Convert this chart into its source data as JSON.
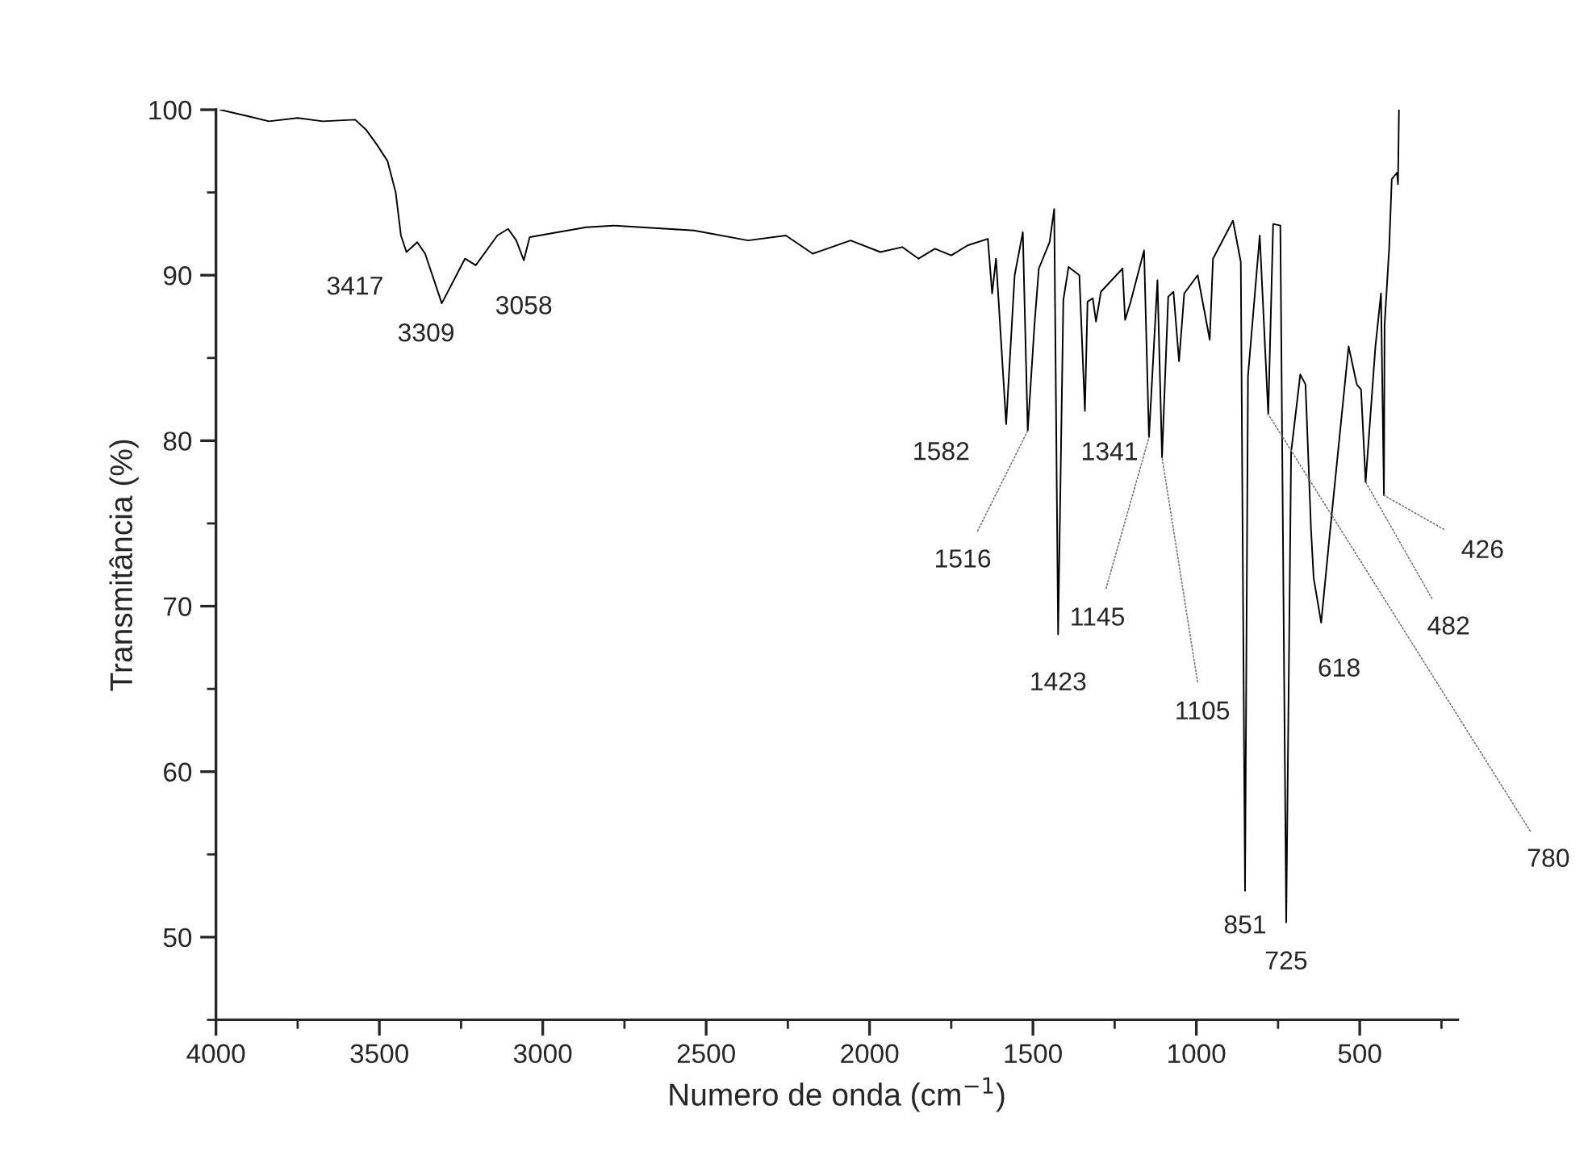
{
  "chart_data": {
    "type": "line",
    "xlabel": "Numero de onda (cm$^{−1}$)",
    "ylabel": "Transmitância (%)",
    "xlim": [
      4000,
      200
    ],
    "ylim": [
      45,
      100
    ],
    "xticks": [
      4000,
      {
        "value": 3750,
        "label": null
      },
      3500,
      {
        "value": 3250,
        "label": null
      },
      3000,
      {
        "value": 2750,
        "label": null
      },
      2500,
      {
        "value": 2250,
        "label": null
      },
      2000,
      {
        "value": 1750,
        "label": null
      },
      1500,
      {
        "value": 1250,
        "label": null
      },
      1000,
      {
        "value": 750,
        "label": null
      },
      500,
      {
        "value": 250,
        "label": null
      }
    ],
    "yticks": [
      {
        "value": 45,
        "label": null
      },
      50,
      {
        "value": 55,
        "label": null
      },
      60,
      {
        "value": 65,
        "label": null
      },
      70,
      {
        "value": 75,
        "label": null
      },
      80,
      {
        "value": 85,
        "label": null
      },
      90,
      {
        "value": 95,
        "label": null
      },
      100
    ],
    "grid": false,
    "legend": false,
    "marker": "none",
    "line_style": "solid",
    "series": [
      {
        "color": "#000000",
        "x": [
          3987,
          3900,
          3838,
          3750,
          3673,
          3574,
          3541,
          3508,
          3475,
          3450,
          3434,
          3417,
          3384,
          3360,
          3309,
          3238,
          3205,
          3139,
          3106,
          3081,
          3058,
          3040,
          2867,
          2784,
          2537,
          2372,
          2256,
          2174,
          2058,
          1967,
          1900,
          1850,
          1800,
          1750,
          1700,
          1638,
          1625,
          1613,
          1582,
          1556,
          1531,
          1516,
          1495,
          1482,
          1449,
          1435,
          1423,
          1407,
          1391,
          1358,
          1341,
          1333,
          1317,
          1307,
          1292,
          1226,
          1218,
          1201,
          1160,
          1145,
          1119,
          1105,
          1086,
          1070,
          1053,
          1037,
          996,
          959,
          949,
          888,
          864,
          851,
          842,
          806,
          780,
          765,
          743,
          725,
          710,
          682,
          666,
          649,
          641,
          618,
          592,
          534,
          509,
          496,
          482,
          452,
          435,
          426,
          424,
          410,
          402,
          386,
          383,
          380
        ],
        "values": [
          100.0,
          99.6,
          99.3,
          99.5,
          99.3,
          99.4,
          98.8,
          97.9,
          96.9,
          95.0,
          92.4,
          91.4,
          92.0,
          91.3,
          88.3,
          91.0,
          90.6,
          92.4,
          92.8,
          92.1,
          90.9,
          92.3,
          92.9,
          93.0,
          92.7,
          92.1,
          92.4,
          91.3,
          92.1,
          91.4,
          91.7,
          91.0,
          91.6,
          91.2,
          91.8,
          92.2,
          88.9,
          91.0,
          81.0,
          90.0,
          92.6,
          80.6,
          87.1,
          90.4,
          92.0,
          94.0,
          68.3,
          88.5,
          90.5,
          90.0,
          81.8,
          88.4,
          88.6,
          87.2,
          89.0,
          90.4,
          87.3,
          88.4,
          91.5,
          80.2,
          89.7,
          79.0,
          88.7,
          89.0,
          84.8,
          88.9,
          90.0,
          86.1,
          91.0,
          93.3,
          90.8,
          52.8,
          83.9,
          92.4,
          81.6,
          93.1,
          93.0,
          50.9,
          79.3,
          84.0,
          83.4,
          74.6,
          71.7,
          69.0,
          74.3,
          85.7,
          83.4,
          83.1,
          77.5,
          85.7,
          88.9,
          76.7,
          87.0,
          91.6,
          95.8,
          96.2,
          95.5,
          100.0
        ]
      }
    ],
    "annotations": [
      {
        "text": "3417",
        "x": 3417,
        "y": 91.4
      },
      {
        "text": "3309",
        "x": 3309,
        "y": 88.3
      },
      {
        "text": "3058",
        "x": 3058,
        "y": 90.9
      },
      {
        "text": "1582",
        "x": 1582,
        "y": 81.0
      },
      {
        "text": "1516",
        "x": 1516,
        "y": 80.6
      },
      {
        "text": "1423",
        "x": 1423,
        "y": 68.3
      },
      {
        "text": "1341",
        "x": 1341,
        "y": 81.8
      },
      {
        "text": "1145",
        "x": 1145,
        "y": 80.2
      },
      {
        "text": "1105",
        "x": 1105,
        "y": 79.0
      },
      {
        "text": "851",
        "x": 851,
        "y": 52.8
      },
      {
        "text": "725",
        "x": 725,
        "y": 50.9
      },
      {
        "text": "618",
        "x": 618,
        "y": 69.0
      },
      {
        "text": "780",
        "x": 780,
        "y": 81.6
      },
      {
        "text": "482",
        "x": 482,
        "y": 77.5
      },
      {
        "text": "426",
        "x": 426,
        "y": 76.7
      }
    ]
  }
}
